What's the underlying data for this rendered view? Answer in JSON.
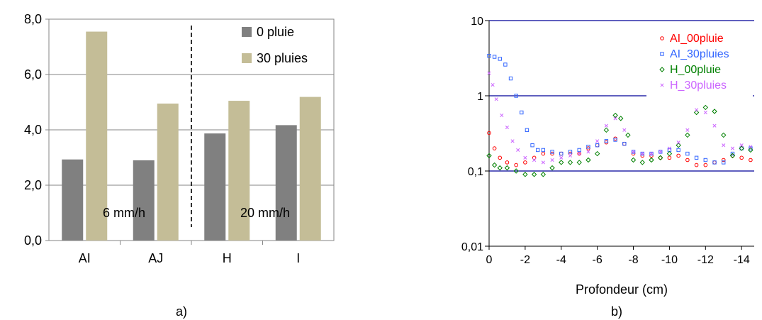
{
  "chart_data": [
    {
      "id": "a",
      "type": "bar",
      "panel_label": "a)",
      "categories": [
        "AI",
        "AJ",
        "H",
        "I"
      ],
      "series": [
        {
          "name": "0 pluie",
          "color": "#808080",
          "values": [
            2.93,
            2.9,
            3.87,
            4.17
          ]
        },
        {
          "name": "30 pluies",
          "color": "#c4bd97",
          "values": [
            7.55,
            4.95,
            5.05,
            5.19
          ]
        }
      ],
      "ylim": [
        0,
        8
      ],
      "yticks": [
        "0,0",
        "2,0",
        "4,0",
        "6,0",
        "8,0"
      ],
      "grid": true,
      "legend": "top-right",
      "annotations": [
        "6 mm/h",
        "20 mm/h"
      ],
      "separator": "dashed vertical line between AJ and H"
    },
    {
      "id": "b",
      "type": "scatter",
      "panel_label": "b)",
      "xlabel": "Profondeur (cm)",
      "y_scale": "log",
      "xlim": [
        0,
        -14.7
      ],
      "ylim": [
        0.01,
        10
      ],
      "xticks": [
        "0",
        "-2",
        "-4",
        "-6",
        "-8",
        "-10",
        "-12",
        "-14"
      ],
      "yticks": [
        "0,01",
        "0,1",
        "1",
        "10"
      ],
      "grid": "horizontal lines at 0,1 and 1",
      "legend": "top-right",
      "series": [
        {
          "name": "AI_00pluie",
          "color": "#ff0000",
          "marker": "circle",
          "points": [
            [
              0,
              0.32
            ],
            [
              -0.3,
              0.2
            ],
            [
              -0.6,
              0.15
            ],
            [
              -1,
              0.13
            ],
            [
              -1.5,
              0.12
            ],
            [
              -2,
              0.13
            ],
            [
              -2.5,
              0.15
            ],
            [
              -3,
              0.17
            ],
            [
              -3.5,
              0.17
            ],
            [
              -4,
              0.17
            ],
            [
              -4.5,
              0.17
            ],
            [
              -5,
              0.17
            ],
            [
              -5.5,
              0.2
            ],
            [
              -6,
              0.22
            ],
            [
              -6.5,
              0.24
            ],
            [
              -7,
              0.27
            ],
            [
              -7.5,
              0.23
            ],
            [
              -8,
              0.17
            ],
            [
              -8.5,
              0.16
            ],
            [
              -9,
              0.16
            ],
            [
              -9.5,
              0.15
            ],
            [
              -10,
              0.15
            ],
            [
              -10.5,
              0.16
            ],
            [
              -11,
              0.14
            ],
            [
              -11.5,
              0.12
            ],
            [
              -12,
              0.12
            ],
            [
              -12.5,
              0.13
            ],
            [
              -13,
              0.14
            ],
            [
              -13.5,
              0.16
            ],
            [
              -14,
              0.15
            ],
            [
              -14.5,
              0.14
            ]
          ]
        },
        {
          "name": "AI_30pluies",
          "color": "#3366ff",
          "marker": "square",
          "points": [
            [
              0,
              3.4
            ],
            [
              -0.3,
              3.3
            ],
            [
              -0.6,
              3.1
            ],
            [
              -0.9,
              2.6
            ],
            [
              -1.2,
              1.7
            ],
            [
              -1.5,
              1.0
            ],
            [
              -1.8,
              0.6
            ],
            [
              -2.1,
              0.35
            ],
            [
              -2.4,
              0.22
            ],
            [
              -2.7,
              0.19
            ],
            [
              -3,
              0.19
            ],
            [
              -3.5,
              0.18
            ],
            [
              -4,
              0.17
            ],
            [
              -4.5,
              0.18
            ],
            [
              -5,
              0.19
            ],
            [
              -5.5,
              0.21
            ],
            [
              -6,
              0.22
            ],
            [
              -6.5,
              0.25
            ],
            [
              -7,
              0.26
            ],
            [
              -7.5,
              0.23
            ],
            [
              -8,
              0.18
            ],
            [
              -8.5,
              0.17
            ],
            [
              -9,
              0.17
            ],
            [
              -9.5,
              0.18
            ],
            [
              -10,
              0.19
            ],
            [
              -10.5,
              0.19
            ],
            [
              -11,
              0.17
            ],
            [
              -11.5,
              0.15
            ],
            [
              -12,
              0.14
            ],
            [
              -12.5,
              0.13
            ],
            [
              -13,
              0.13
            ],
            [
              -13.5,
              0.17
            ],
            [
              -14,
              0.2
            ],
            [
              -14.5,
              0.2
            ]
          ]
        },
        {
          "name": "H_00pluie",
          "color": "#008000",
          "marker": "diamond",
          "points": [
            [
              0,
              0.16
            ],
            [
              -0.3,
              0.12
            ],
            [
              -0.6,
              0.11
            ],
            [
              -1,
              0.11
            ],
            [
              -1.5,
              0.1
            ],
            [
              -2,
              0.09
            ],
            [
              -2.5,
              0.09
            ],
            [
              -3,
              0.09
            ],
            [
              -3.5,
              0.11
            ],
            [
              -4,
              0.13
            ],
            [
              -4.5,
              0.13
            ],
            [
              -5,
              0.13
            ],
            [
              -5.5,
              0.14
            ],
            [
              -6,
              0.17
            ],
            [
              -6.5,
              0.35
            ],
            [
              -7,
              0.55
            ],
            [
              -7.3,
              0.5
            ],
            [
              -7.7,
              0.3
            ],
            [
              -8,
              0.14
            ],
            [
              -8.5,
              0.13
            ],
            [
              -9,
              0.14
            ],
            [
              -9.5,
              0.15
            ],
            [
              -10,
              0.17
            ],
            [
              -10.5,
              0.22
            ],
            [
              -11,
              0.3
            ],
            [
              -11.5,
              0.6
            ],
            [
              -12,
              0.7
            ],
            [
              -12.5,
              0.62
            ],
            [
              -13,
              0.3
            ],
            [
              -13.5,
              0.16
            ],
            [
              -14,
              0.2
            ],
            [
              -14.5,
              0.19
            ]
          ]
        },
        {
          "name": "H_30pluies",
          "color": "#cc66ff",
          "marker": "cross",
          "points": [
            [
              0,
              2.0
            ],
            [
              -0.2,
              1.4
            ],
            [
              -0.4,
              0.9
            ],
            [
              -0.7,
              0.55
            ],
            [
              -1,
              0.38
            ],
            [
              -1.3,
              0.25
            ],
            [
              -1.6,
              0.19
            ],
            [
              -2,
              0.15
            ],
            [
              -2.5,
              0.14
            ],
            [
              -3,
              0.13
            ],
            [
              -3.5,
              0.14
            ],
            [
              -4,
              0.15
            ],
            [
              -4.5,
              0.16
            ],
            [
              -5,
              0.17
            ],
            [
              -5.5,
              0.18
            ],
            [
              -6,
              0.25
            ],
            [
              -6.5,
              0.4
            ],
            [
              -7,
              0.5
            ],
            [
              -7.5,
              0.35
            ],
            [
              -8,
              0.18
            ],
            [
              -8.5,
              0.17
            ],
            [
              -9,
              0.17
            ],
            [
              -9.5,
              0.18
            ],
            [
              -10,
              0.2
            ],
            [
              -10.5,
              0.24
            ],
            [
              -11,
              0.35
            ],
            [
              -11.5,
              0.65
            ],
            [
              -12,
              0.6
            ],
            [
              -12.5,
              0.4
            ],
            [
              -13,
              0.22
            ],
            [
              -13.5,
              0.2
            ],
            [
              -14,
              0.22
            ],
            [
              -14.5,
              0.21
            ]
          ]
        }
      ]
    }
  ]
}
